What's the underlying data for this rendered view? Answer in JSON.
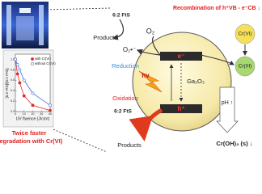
{
  "inset": {
    "type": "line",
    "x_label": "UV fluence (J/cm²)",
    "y_label": "[6:2 FtS]/[6:2 FtS]₀",
    "xlim": [
      0,
      40
    ],
    "ylim": [
      0,
      1.1
    ],
    "xticks": [
      0,
      10,
      20,
      30,
      40
    ],
    "yticks": [
      {
        "value": 0,
        "label": "0.0"
      },
      {
        "value": 0.2,
        "label": "0.2"
      },
      {
        "value": 0.4,
        "label": "0.4"
      },
      {
        "value": 0.6,
        "label": "0.6"
      },
      {
        "value": 0.8,
        "label": "0.8"
      },
      {
        "value": 1,
        "label": "1.0"
      }
    ],
    "x": [
      0,
      2.5,
      5,
      10,
      20,
      40
    ],
    "series": [
      {
        "name": "with Cr(VI)",
        "color": "#e02a2a",
        "values": [
          1.0,
          0.72,
          0.55,
          0.3,
          0.12,
          0.02
        ]
      },
      {
        "name": "without Cr(VI)",
        "color": "#4a6fd6",
        "values": [
          1.0,
          0.9,
          0.8,
          0.6,
          0.35,
          0.12
        ]
      }
    ]
  },
  "caption": [
    "Twice faster",
    "degradation with Cr(VI)"
  ],
  "diagram": {
    "recombination": "Recombination of h⁺VB - e⁻CB ↓",
    "top_reactant": "6:2 FtS",
    "top_products": "Products",
    "o2": "O₂",
    "superoxide": "O₂•⁻",
    "reduction": "Reduction",
    "electron": "e⁻",
    "catalyst": "Ga₂O₃",
    "photon": "hv",
    "hole": "h⁺",
    "oxidation": "Oxidation",
    "bottom_reactant": "6:2 FtS",
    "bottom_products": "Products",
    "cr6": "Cr(VI)",
    "cr3": "Cr(III)",
    "ph": "pH ↑",
    "precipitate": "Cr(OH)₃ (s) ↓"
  }
}
